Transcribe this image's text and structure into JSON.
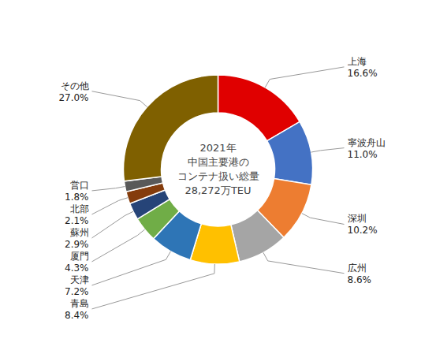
{
  "chart_data": {
    "type": "donut",
    "annotations": [
      "2021年",
      "中国主要港の",
      "コンテナ扱い総量",
      "28,272万TEU"
    ],
    "categories": [
      "上海",
      "寧波舟山",
      "深圳",
      "広州",
      "青島",
      "天津",
      "厦門",
      "蘇州",
      "北部",
      "営口",
      "その他"
    ],
    "values": [
      16.6,
      11.0,
      10.2,
      8.6,
      8.4,
      7.2,
      4.3,
      2.9,
      2.1,
      1.8,
      27.0
    ],
    "value_labels": [
      "16.6%",
      "11.0%",
      "10.2%",
      "8.6%",
      "8.4%",
      "7.2%",
      "4.3%",
      "2.9%",
      "2.1%",
      "1.8%",
      "27.0%"
    ],
    "colors": [
      "#e00000",
      "#4472c4",
      "#ed7d31",
      "#a5a5a5",
      "#ffc000",
      "#2e75b6",
      "#70ad47",
      "#264478",
      "#843c0c",
      "#595959",
      "#7f6000"
    ],
    "data_labels": true
  }
}
